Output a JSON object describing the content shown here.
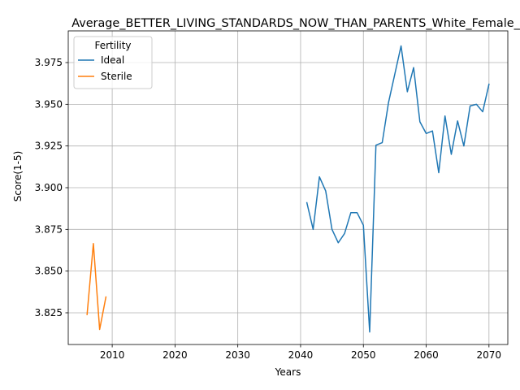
{
  "chart_data": {
    "type": "line",
    "title": "Average_BETTER_LIVING_STANDARDS_NOW_THAN_PARENTS_White_Female_",
    "xlabel": "Years",
    "ylabel": "Score(1-5)",
    "xlim": [
      2003,
      2073
    ],
    "ylim": [
      3.806,
      3.994
    ],
    "xticks": [
      2010,
      2020,
      2030,
      2040,
      2050,
      2060,
      2070
    ],
    "xtick_labels": [
      "2010",
      "2020",
      "2030",
      "2040",
      "2050",
      "2060",
      "2070"
    ],
    "yticks": [
      3.825,
      3.85,
      3.875,
      3.9,
      3.925,
      3.95,
      3.975
    ],
    "ytick_labels": [
      "3.825",
      "3.850",
      "3.875",
      "3.900",
      "3.925",
      "3.950",
      "3.975"
    ],
    "grid": true,
    "legend": {
      "title": "Fertility",
      "position": "top-left"
    },
    "series": [
      {
        "name": "Ideal",
        "color": "#1f77b4",
        "x": [
          2041,
          2042,
          2043,
          2044,
          2045,
          2046,
          2047,
          2048,
          2049,
          2050,
          2051,
          2052,
          2053,
          2054,
          2055,
          2056,
          2057,
          2058,
          2059,
          2060,
          2061,
          2062,
          2063,
          2064,
          2065,
          2066,
          2067,
          2068,
          2069,
          2070
        ],
        "y": [
          3.891,
          3.875,
          3.9065,
          3.898,
          3.875,
          3.867,
          3.8725,
          3.885,
          3.885,
          3.8775,
          3.8135,
          3.9255,
          3.927,
          3.951,
          3.968,
          3.985,
          3.9575,
          3.972,
          3.9395,
          3.9325,
          3.934,
          3.909,
          3.943,
          3.92,
          3.94,
          3.925,
          3.949,
          3.95,
          3.9455,
          3.962
        ]
      },
      {
        "name": "Sterile",
        "color": "#ff7f0e",
        "x": [
          2006,
          2007,
          2008,
          2009
        ],
        "y": [
          3.824,
          3.8665,
          3.815,
          3.8345
        ]
      }
    ]
  }
}
